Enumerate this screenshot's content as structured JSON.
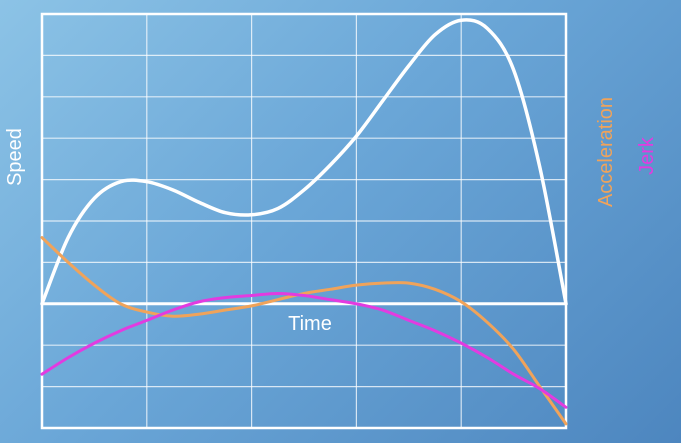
{
  "chart_data": {
    "type": "line",
    "title": "",
    "xlabel": "Time",
    "ylabel": "Speed",
    "grid": true,
    "xlim": [
      0,
      5
    ],
    "ylim": [
      -3,
      7
    ],
    "series": [
      {
        "name": "",
        "color": "#ffffff",
        "x": [
          0,
          0.25,
          0.5,
          0.75,
          1.0,
          1.25,
          1.5,
          1.75,
          2.0,
          2.25,
          2.5,
          2.75,
          3.0,
          3.25,
          3.5,
          3.75,
          4.0,
          4.25,
          4.5,
          4.75,
          5.0
        ],
        "values": [
          0,
          1.6,
          2.55,
          2.95,
          2.95,
          2.75,
          2.45,
          2.2,
          2.15,
          2.3,
          2.75,
          3.35,
          4.05,
          4.9,
          5.75,
          6.5,
          6.85,
          6.65,
          5.65,
          3.3,
          0
        ]
      },
      {
        "name": "Acceleration",
        "color": "#f0a35a",
        "x": [
          0,
          0.25,
          0.5,
          0.75,
          1.0,
          1.25,
          1.5,
          1.75,
          2.0,
          2.25,
          2.5,
          2.75,
          3.0,
          3.25,
          3.5,
          3.75,
          4.0,
          4.25,
          4.5,
          4.75,
          5.0
        ],
        "values": [
          1.6,
          1.0,
          0.45,
          0.0,
          -0.2,
          -0.3,
          -0.25,
          -0.15,
          -0.05,
          0.1,
          0.25,
          0.35,
          0.45,
          0.5,
          0.5,
          0.35,
          0.05,
          -0.45,
          -1.1,
          -2.0,
          -2.9
        ]
      },
      {
        "name": "Jerk",
        "color": "#e23be0",
        "x": [
          0,
          0.25,
          0.5,
          0.75,
          1.0,
          1.25,
          1.5,
          1.75,
          2.0,
          2.25,
          2.5,
          2.75,
          3.0,
          3.25,
          3.5,
          3.75,
          4.0,
          4.25,
          4.5,
          4.75,
          5.0
        ],
        "values": [
          -1.7,
          -1.3,
          -0.95,
          -0.65,
          -0.4,
          -0.15,
          0.05,
          0.15,
          0.2,
          0.25,
          0.2,
          0.1,
          0.0,
          -0.15,
          -0.4,
          -0.65,
          -0.95,
          -1.3,
          -1.7,
          -2.05,
          -2.5
        ]
      }
    ]
  }
}
